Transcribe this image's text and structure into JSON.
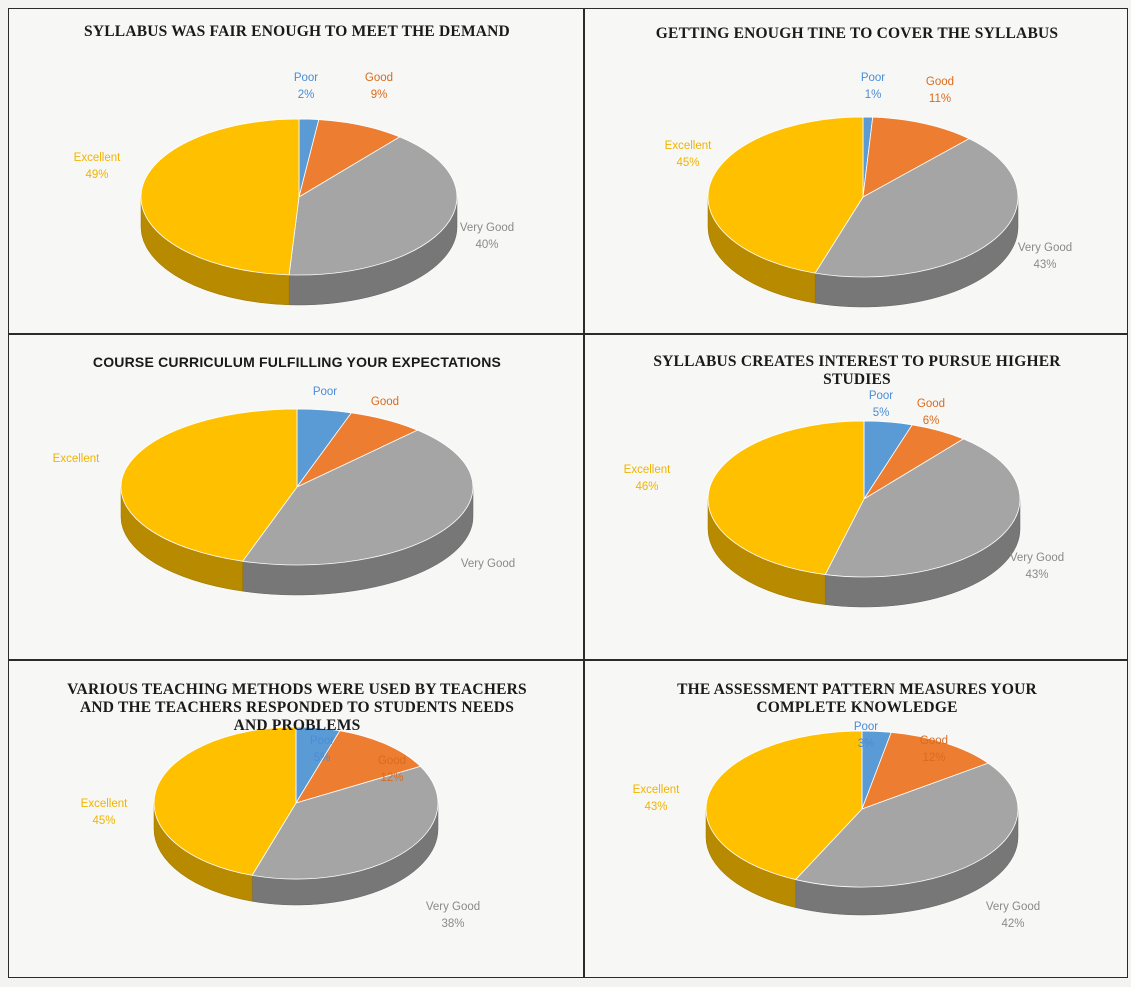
{
  "chart_data": [
    {
      "type": "pie",
      "title": "SYLLABUS WAS FAIR ENOUGH TO MEET THE DEMAND",
      "categories": [
        "Poor",
        "Good",
        "Very Good",
        "Excellent"
      ],
      "values": [
        2,
        9,
        40,
        49
      ],
      "value_labels": [
        "2%",
        "9%",
        "40%",
        "49%"
      ]
    },
    {
      "type": "pie",
      "title": "GETTING ENOUGH TINE TO COVER THE SYLLABUS",
      "categories": [
        "Poor",
        "Good",
        "Very Good",
        "Excellent"
      ],
      "values": [
        1,
        11,
        43,
        45
      ],
      "value_labels": [
        "1%",
        "11%",
        "43%",
        "45%"
      ]
    },
    {
      "type": "pie",
      "title": "COURSE CURRICULUM FULFILLING YOUR EXPECTATIONS",
      "categories": [
        "Poor",
        "Good",
        "Very Good",
        "Excellent"
      ],
      "values": [
        5,
        7,
        43,
        45
      ],
      "value_labels": [
        "",
        "",
        "",
        ""
      ]
    },
    {
      "type": "pie",
      "title": "SYLLABUS CREATES INTEREST TO PURSUE HIGHER STUDIES",
      "categories": [
        "Poor",
        "Good",
        "Very Good",
        "Excellent"
      ],
      "values": [
        5,
        6,
        43,
        46
      ],
      "value_labels": [
        "5%",
        "6%",
        "43%",
        "46%"
      ]
    },
    {
      "type": "pie",
      "title": "VARIOUS TEACHING METHODS WERE USED BY TEACHERS AND THE TEACHERS RESPONDED TO STUDENTS NEEDS AND PROBLEMS",
      "categories": [
        "Poor",
        "Good",
        "Very Good",
        "Excellent"
      ],
      "values": [
        5,
        12,
        38,
        45
      ],
      "value_labels": [
        "5%",
        "12%",
        "38%",
        "45%"
      ]
    },
    {
      "type": "pie",
      "title": "THE ASSESSMENT PATTERN MEASURES YOUR COMPLETE KNOWLEDGE",
      "categories": [
        "Poor",
        "Good",
        "Very Good",
        "Excellent"
      ],
      "values": [
        3,
        12,
        42,
        43
      ],
      "value_labels": [
        "3%",
        "12%",
        "42%",
        "43%"
      ]
    }
  ],
  "colors": {
    "Poor": "#5b9bd5",
    "Good": "#ed7d31",
    "Very Good": "#a5a5a5",
    "Excellent": "#ffc000"
  },
  "label_colors": {
    "Poor": "#4a8cd6",
    "Good": "#d96b1f",
    "Very Good": "#8a8a8a",
    "Excellent": "#f0b400"
  }
}
